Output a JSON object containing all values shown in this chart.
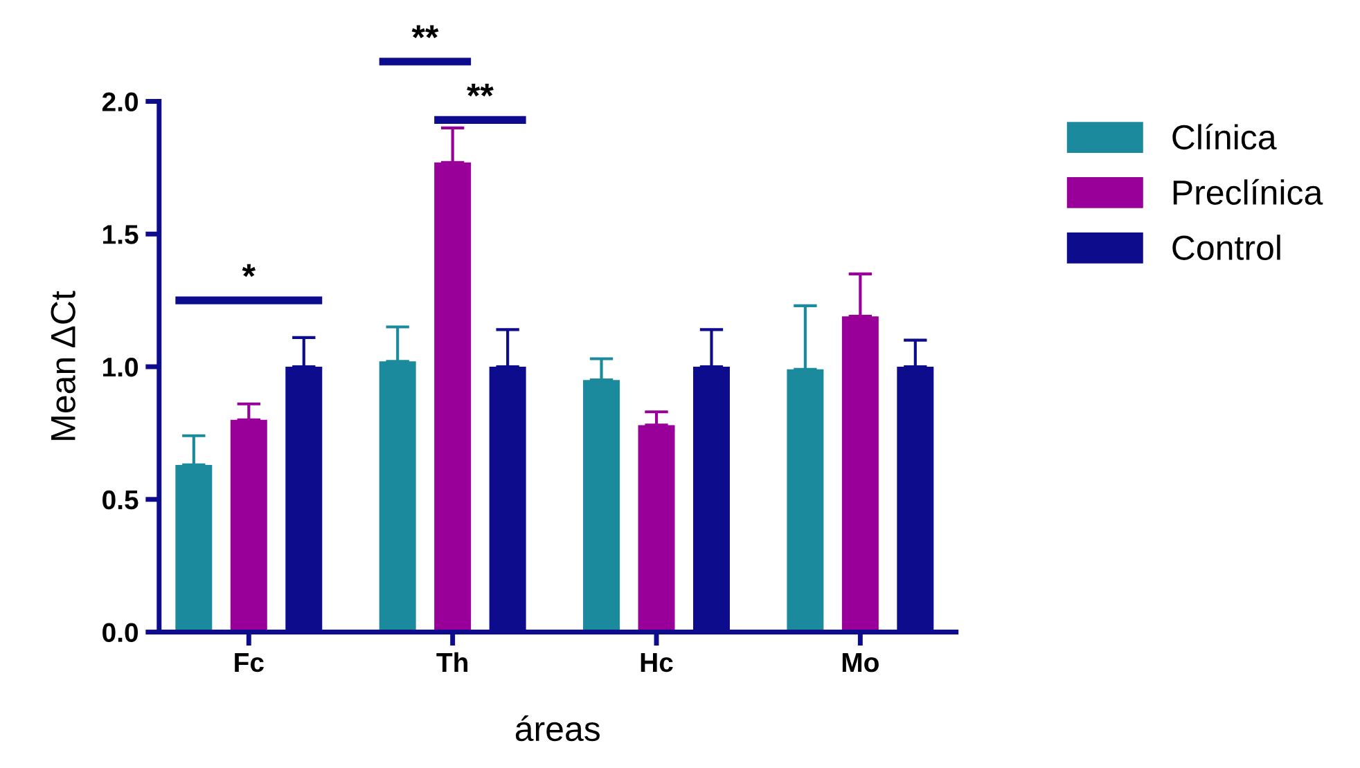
{
  "chart_data": {
    "type": "bar",
    "xlabel": "áreas",
    "ylabel": "Mean ΔCt",
    "categories": [
      "Fc",
      "Th",
      "Hc",
      "Mo"
    ],
    "series": [
      {
        "name": "Clínica",
        "color": "#1b8a9c",
        "values": [
          0.63,
          1.02,
          0.95,
          0.99
        ],
        "errors": [
          [
            0.63,
            0.74
          ],
          [
            1.02,
            1.15
          ],
          [
            0.95,
            1.03
          ],
          [
            0.99,
            1.23
          ]
        ]
      },
      {
        "name": "Preclínica",
        "color": "#990099",
        "values": [
          0.8,
          1.77,
          0.78,
          1.19
        ],
        "errors": [
          [
            0.8,
            0.86
          ],
          [
            1.77,
            1.9
          ],
          [
            0.78,
            0.83
          ],
          [
            1.19,
            1.35
          ]
        ]
      },
      {
        "name": "Control",
        "color": "#0c0c8c",
        "values": [
          1.0,
          1.0,
          1.0,
          1.0
        ],
        "errors": [
          [
            1.0,
            1.11
          ],
          [
            1.0,
            1.14
          ],
          [
            1.0,
            1.14
          ],
          [
            1.0,
            1.1
          ]
        ]
      }
    ],
    "ylim": [
      0,
      2.0
    ],
    "yticks": [
      {
        "value": 0,
        "label": "0.0"
      },
      {
        "value": 0.5,
        "label": "0.5"
      },
      {
        "value": 1.0,
        "label": "1.0"
      },
      {
        "value": 1.5,
        "label": "1.5"
      },
      {
        "value": 2.0,
        "label": "2.0"
      }
    ],
    "annotations": [
      "*",
      "**",
      "**"
    ],
    "legend": "right",
    "grid": false
  }
}
